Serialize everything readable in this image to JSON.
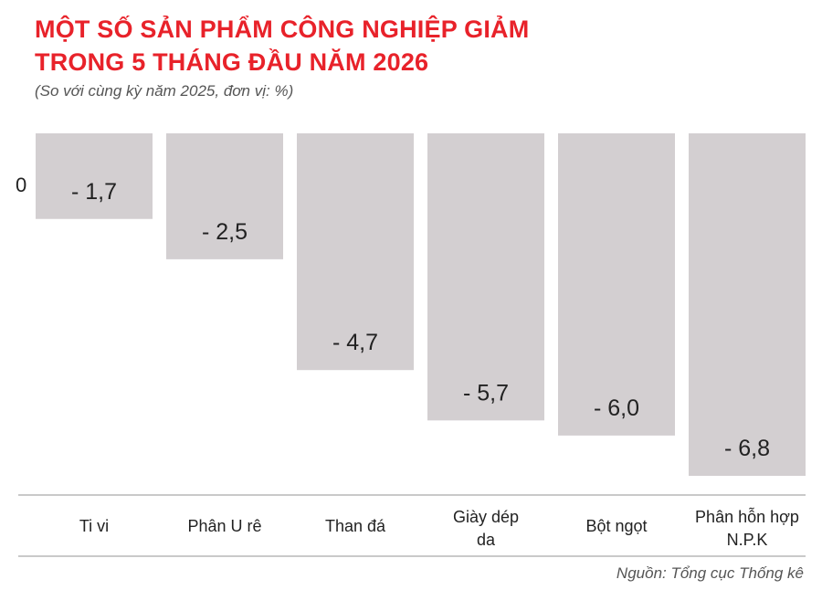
{
  "title_lines": [
    "MỘT SỐ SẢN PHẨM CÔNG NGHIỆP GIẢM",
    "TRONG 5 THÁNG ĐẦU NĂM 2026"
  ],
  "subtitle": "(So với cùng kỳ năm 2025, đơn vị: %)",
  "source": "Nguồn: Tổng cục Thống kê",
  "colors": {
    "title": "#e8222a",
    "bar": "#d3cfd1",
    "axis": "#c9c9c9"
  },
  "chart_data": {
    "type": "bar",
    "categories": [
      [
        "Ti vi"
      ],
      [
        "Phân U rê"
      ],
      [
        "Than đá"
      ],
      [
        "Giày dép",
        "da"
      ],
      [
        "Bột ngọt"
      ],
      [
        "Phân hỗn hợp",
        "N.P.K"
      ]
    ],
    "values": [
      -1.7,
      -2.5,
      -4.7,
      -5.7,
      -6.0,
      -6.8
    ],
    "value_labels": [
      "- 1,7",
      "- 2,5",
      "- 4,7",
      "- 5,7",
      "- 6,0",
      "- 6,8"
    ],
    "zero_label": "0",
    "ylim": [
      -6.8,
      0
    ],
    "grid": false
  }
}
